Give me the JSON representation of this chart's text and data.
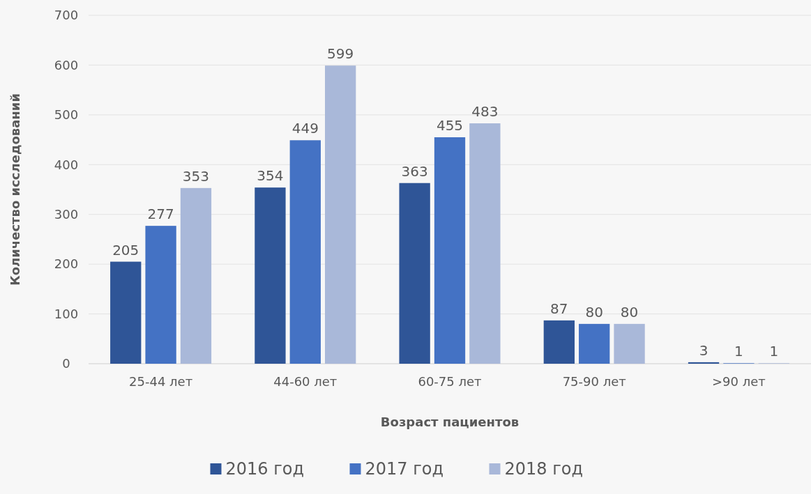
{
  "chart_data": {
    "type": "bar",
    "xlabel": "Возраст пациентов",
    "ylabel": "Количество исследований",
    "categories": [
      "25-44 лет",
      "44-60 лет",
      "60-75 лет",
      "75-90 лет",
      ">90 лет"
    ],
    "series": [
      {
        "name": "2016 год",
        "color": "#2f5597",
        "values": [
          205,
          354,
          363,
          87,
          3
        ]
      },
      {
        "name": "2017 год",
        "color": "#4472c4",
        "values": [
          277,
          449,
          455,
          80,
          1
        ]
      },
      {
        "name": "2018 год",
        "color": "#a9b8d9",
        "values": [
          353,
          599,
          483,
          80,
          1
        ]
      }
    ],
    "ylim": [
      0,
      700
    ],
    "yticks": [
      0,
      100,
      200,
      300,
      400,
      500,
      600,
      700
    ],
    "grid": "y",
    "legend": "bottom",
    "data_labels": true
  }
}
